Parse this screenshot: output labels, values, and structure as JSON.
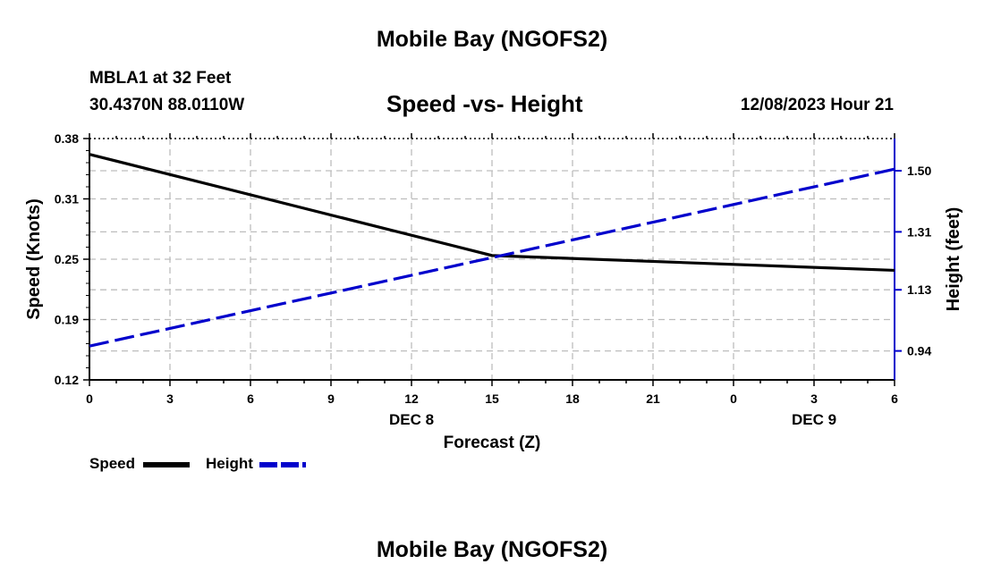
{
  "page_title": "Mobile Bay (NGOFS2)",
  "station_line": "MBLA1 at 32 Feet",
  "coords_line": "30.4370N  88.0110W",
  "footer_title": "Mobile Bay (NGOFS2)",
  "chart_data": {
    "type": "line",
    "title": "Speed -vs- Height",
    "timestamp": "12/08/2023 Hour 21",
    "xlabel": "Forecast (Z)",
    "ylabel_left": "Speed (Knots)",
    "ylabel_right": "Height (feet)",
    "x_ticks": [
      "0",
      "3",
      "6",
      "9",
      "12",
      "15",
      "18",
      "21",
      "0",
      "3",
      "6"
    ],
    "x_range": [
      0,
      30
    ],
    "date_labels": [
      {
        "text": "DEC 8",
        "x": 12
      },
      {
        "text": "DEC 9",
        "x": 27
      }
    ],
    "y_left_ticks": [
      "0.38",
      "0.31",
      "0.25",
      "0.19",
      "0.12"
    ],
    "y_left_range": [
      0.12,
      0.38
    ],
    "y_right_ticks": [
      "1.50",
      "1.31",
      "1.13",
      "0.94"
    ],
    "y_right_range": [
      0.85,
      1.6
    ],
    "grid": true,
    "legend_position": "bottom-left",
    "series": [
      {
        "name": "Speed",
        "axis": "left",
        "color": "#000000",
        "dash": "solid",
        "x": [
          0,
          15,
          30
        ],
        "values": [
          0.363,
          0.254,
          0.238
        ]
      },
      {
        "name": "Height",
        "axis": "right",
        "color": "#0000cc",
        "dash": "dashed",
        "x": [
          0,
          30
        ],
        "values": [
          0.955,
          1.505
        ]
      }
    ]
  }
}
